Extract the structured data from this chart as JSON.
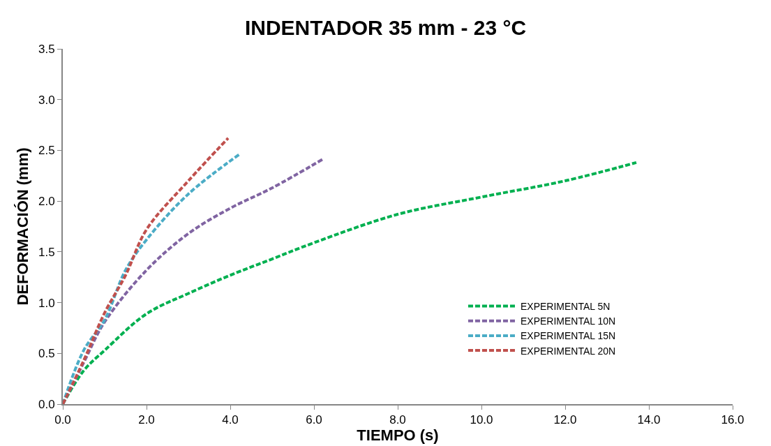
{
  "chart_data": {
    "type": "line",
    "title": "INDENTADOR 35 mm - 23 °C",
    "xlabel": "TIEMPO (s)",
    "ylabel": "DEFORMACIÓN (mm)",
    "series": [
      {
        "name": "EXPERIMENTAL 5N",
        "color": "#00b050",
        "x": [
          0,
          0.5,
          1,
          2,
          3,
          4,
          5,
          6,
          8,
          10,
          12,
          13.7
        ],
        "values": [
          0,
          0.33,
          0.53,
          0.89,
          1.09,
          1.27,
          1.43,
          1.59,
          1.87,
          2.04,
          2.2,
          2.38
        ]
      },
      {
        "name": "EXPERIMENTAL 10N",
        "color": "#8064a2",
        "x": [
          0,
          0.5,
          1,
          2,
          3,
          4,
          5,
          6.2
        ],
        "values": [
          0,
          0.41,
          0.81,
          1.32,
          1.68,
          1.93,
          2.13,
          2.41
        ]
      },
      {
        "name": "EXPERIMENTAL 15N",
        "color": "#4bacc6",
        "x": [
          0,
          0.5,
          1,
          1.5,
          2,
          3,
          4.25
        ],
        "values": [
          0,
          0.53,
          0.83,
          1.32,
          1.62,
          2.07,
          2.47
        ]
      },
      {
        "name": "EXPERIMENTAL 20N",
        "color": "#c0504d",
        "x": [
          0,
          0.5,
          1,
          1.5,
          2,
          3,
          3.95
        ],
        "values": [
          0,
          0.43,
          0.9,
          1.27,
          1.72,
          2.2,
          2.62
        ]
      }
    ],
    "xlim": [
      0,
      16
    ],
    "xticks": [
      {
        "value": 0,
        "label": "0.0"
      },
      {
        "value": 2,
        "label": "2.0"
      },
      {
        "value": 4,
        "label": "4.0"
      },
      {
        "value": 6,
        "label": "6.0"
      },
      {
        "value": 8,
        "label": "8.0"
      },
      {
        "value": 10,
        "label": "10.0"
      },
      {
        "value": 12,
        "label": "12.0"
      },
      {
        "value": 14,
        "label": "14.0"
      },
      {
        "value": 16,
        "label": "16.0"
      }
    ],
    "ylim": [
      0,
      3.5
    ],
    "yticks": [
      {
        "value": 0,
        "label": "0.0"
      },
      {
        "value": 0.5,
        "label": "0.5"
      },
      {
        "value": 1,
        "label": "1.0"
      },
      {
        "value": 1.5,
        "label": "1.5"
      },
      {
        "value": 2,
        "label": "2.0"
      },
      {
        "value": 2.5,
        "label": "2.5"
      },
      {
        "value": 3,
        "label": "3.0"
      },
      {
        "value": 3.5,
        "label": "3.5"
      }
    ],
    "grid": false,
    "legend": "bottom right",
    "marker": "none",
    "line_style": "dashed"
  }
}
